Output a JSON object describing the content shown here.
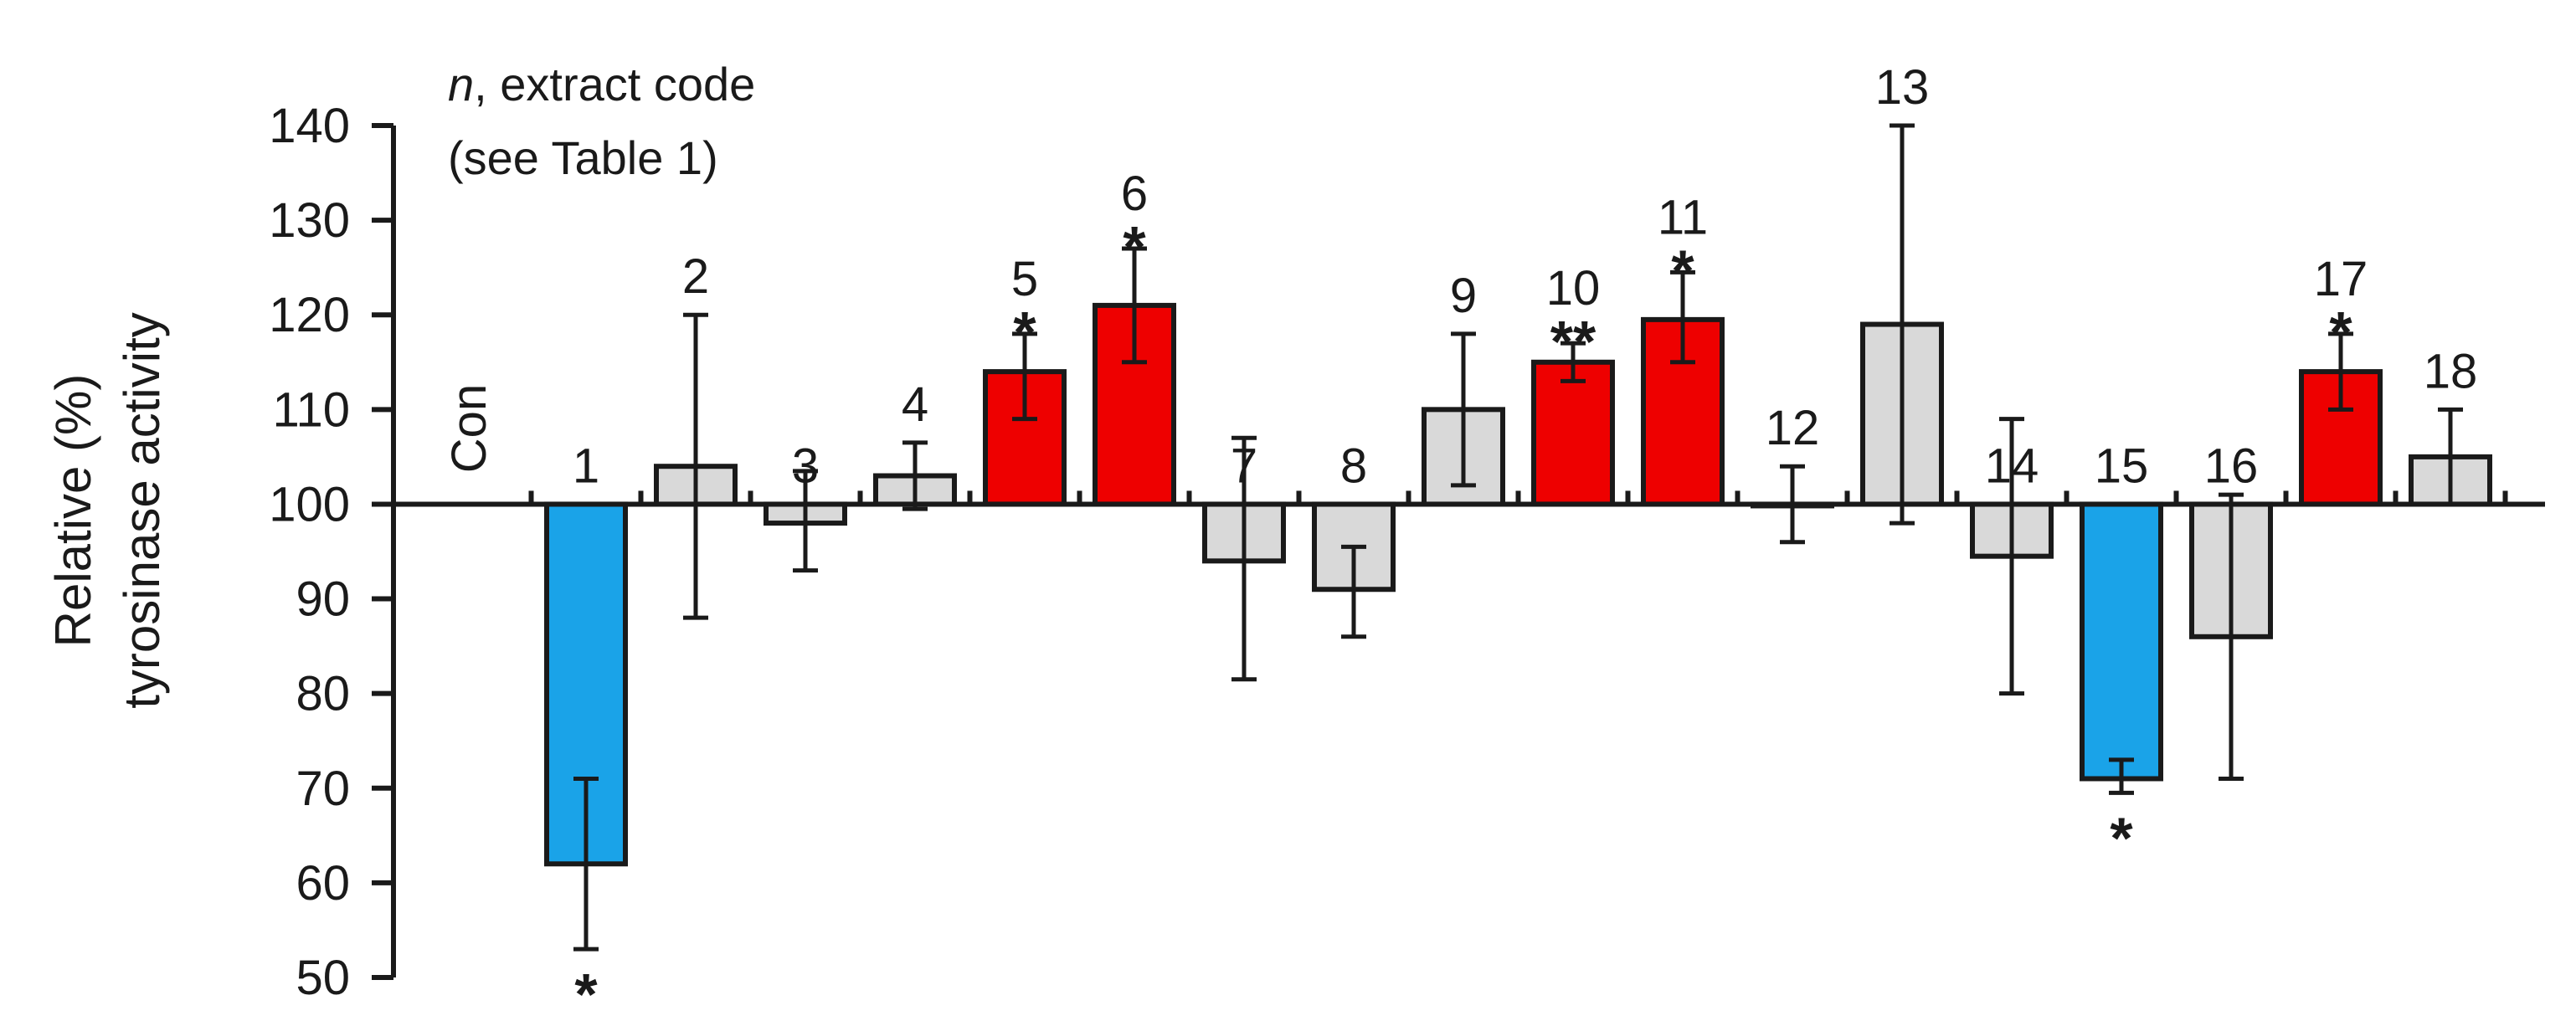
{
  "chart_data": {
    "type": "bar",
    "ylabel": [
      "Relative (%)",
      "tyrosinase activity"
    ],
    "ylim": [
      50,
      140
    ],
    "yticks": [
      50,
      60,
      70,
      80,
      90,
      100,
      110,
      120,
      130,
      140
    ],
    "baseline": 100,
    "annotation": {
      "line1_italic": "n",
      "line1_rest": ", extract code",
      "line2": "(see Table 1)"
    },
    "control_label": "Con",
    "colors": {
      "increase": "#ee0000",
      "decrease": "#1aa3e8",
      "ns": "#d9d9d9"
    },
    "bars": [
      {
        "label": "1",
        "value": 62,
        "err_low": 53,
        "err_high": 71,
        "sig": "*",
        "group": "decrease"
      },
      {
        "label": "2",
        "value": 104,
        "err_low": 88,
        "err_high": 120,
        "sig": "",
        "group": "ns"
      },
      {
        "label": "3",
        "value": 98,
        "err_low": 93,
        "err_high": 103.5,
        "sig": "",
        "group": "ns"
      },
      {
        "label": "4",
        "value": 103,
        "err_low": 99.5,
        "err_high": 106.5,
        "sig": "",
        "group": "ns"
      },
      {
        "label": "5",
        "value": 114,
        "err_low": 109,
        "err_high": 118,
        "sig": "*",
        "group": "increase"
      },
      {
        "label": "6",
        "value": 121,
        "err_low": 115,
        "err_high": 127,
        "sig": "*",
        "group": "increase"
      },
      {
        "label": "7",
        "value": 94,
        "err_low": 81.5,
        "err_high": 107,
        "sig": "",
        "group": "ns"
      },
      {
        "label": "8",
        "value": 91,
        "err_low": 86,
        "err_high": 95.5,
        "sig": "",
        "group": "ns"
      },
      {
        "label": "9",
        "value": 110,
        "err_low": 102,
        "err_high": 118,
        "sig": "",
        "group": "ns"
      },
      {
        "label": "10",
        "value": 115,
        "err_low": 113,
        "err_high": 117,
        "sig": "**",
        "group": "increase"
      },
      {
        "label": "11",
        "value": 119.5,
        "err_low": 115,
        "err_high": 124.5,
        "sig": "*",
        "group": "increase"
      },
      {
        "label": "12",
        "value": 100,
        "err_low": 96,
        "err_high": 104,
        "sig": "",
        "group": "ns"
      },
      {
        "label": "13",
        "value": 119,
        "err_low": 98,
        "err_high": 140,
        "sig": "",
        "group": "ns"
      },
      {
        "label": "14",
        "value": 94.5,
        "err_low": 80,
        "err_high": 109,
        "sig": "",
        "group": "ns"
      },
      {
        "label": "15",
        "value": 71,
        "err_low": 69.5,
        "err_high": 73,
        "sig": "*",
        "group": "decrease"
      },
      {
        "label": "16",
        "value": 86,
        "err_low": 71,
        "err_high": 101,
        "sig": "",
        "group": "ns"
      },
      {
        "label": "17",
        "value": 114,
        "err_low": 110,
        "err_high": 118,
        "sig": "*",
        "group": "increase"
      },
      {
        "label": "18",
        "value": 105,
        "err_low": 100,
        "err_high": 110,
        "sig": "",
        "group": "ns"
      }
    ]
  }
}
